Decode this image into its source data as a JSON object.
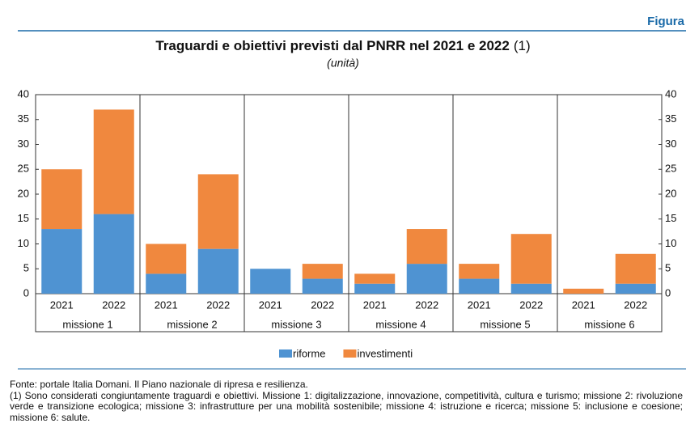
{
  "figure_label": "Figura",
  "chart_data": {
    "type": "stacked_bar",
    "title": "Traguardi e obiettivi previsti dal PNRR nel 2021 e 2022",
    "title_note": "(1)",
    "subtitle": "(unità)",
    "categories": [
      "2021",
      "2022",
      "2021",
      "2022",
      "2021",
      "2022",
      "2021",
      "2022",
      "2021",
      "2022",
      "2021",
      "2022"
    ],
    "groups": [
      "missione 1",
      "missione 2",
      "missione 3",
      "missione 4",
      "missione 5",
      "missione 6"
    ],
    "series": [
      {
        "name": "riforme",
        "color": "#4f93d2",
        "values": [
          13,
          16,
          4,
          9,
          5,
          3,
          2,
          6,
          3,
          2,
          0,
          2
        ]
      },
      {
        "name": "investimenti",
        "color": "#f0883e",
        "values": [
          12,
          21,
          6,
          15,
          0,
          3,
          2,
          7,
          3,
          10,
          1,
          6
        ]
      }
    ],
    "ylim": [
      0,
      40
    ],
    "yticks": [
      0,
      5,
      10,
      15,
      20,
      25,
      30,
      35,
      40
    ],
    "legend": "bottom"
  },
  "footnotes": {
    "source": "Fonte: portale Italia Domani. Il Piano nazionale di ripresa e resilienza.",
    "note": "(1) Sono considerati congiuntamente traguardi e obiettivi. Missione 1: digitalizzazione, innovazione, competitività, cultura e turismo; missione 2: rivoluzione verde e transizione ecologica; missione 3: infrastrutture per una mobilità sostenibile; missione 4: istruzione e ricerca; missione 5: inclusione e coesione; missione 6: salute."
  }
}
